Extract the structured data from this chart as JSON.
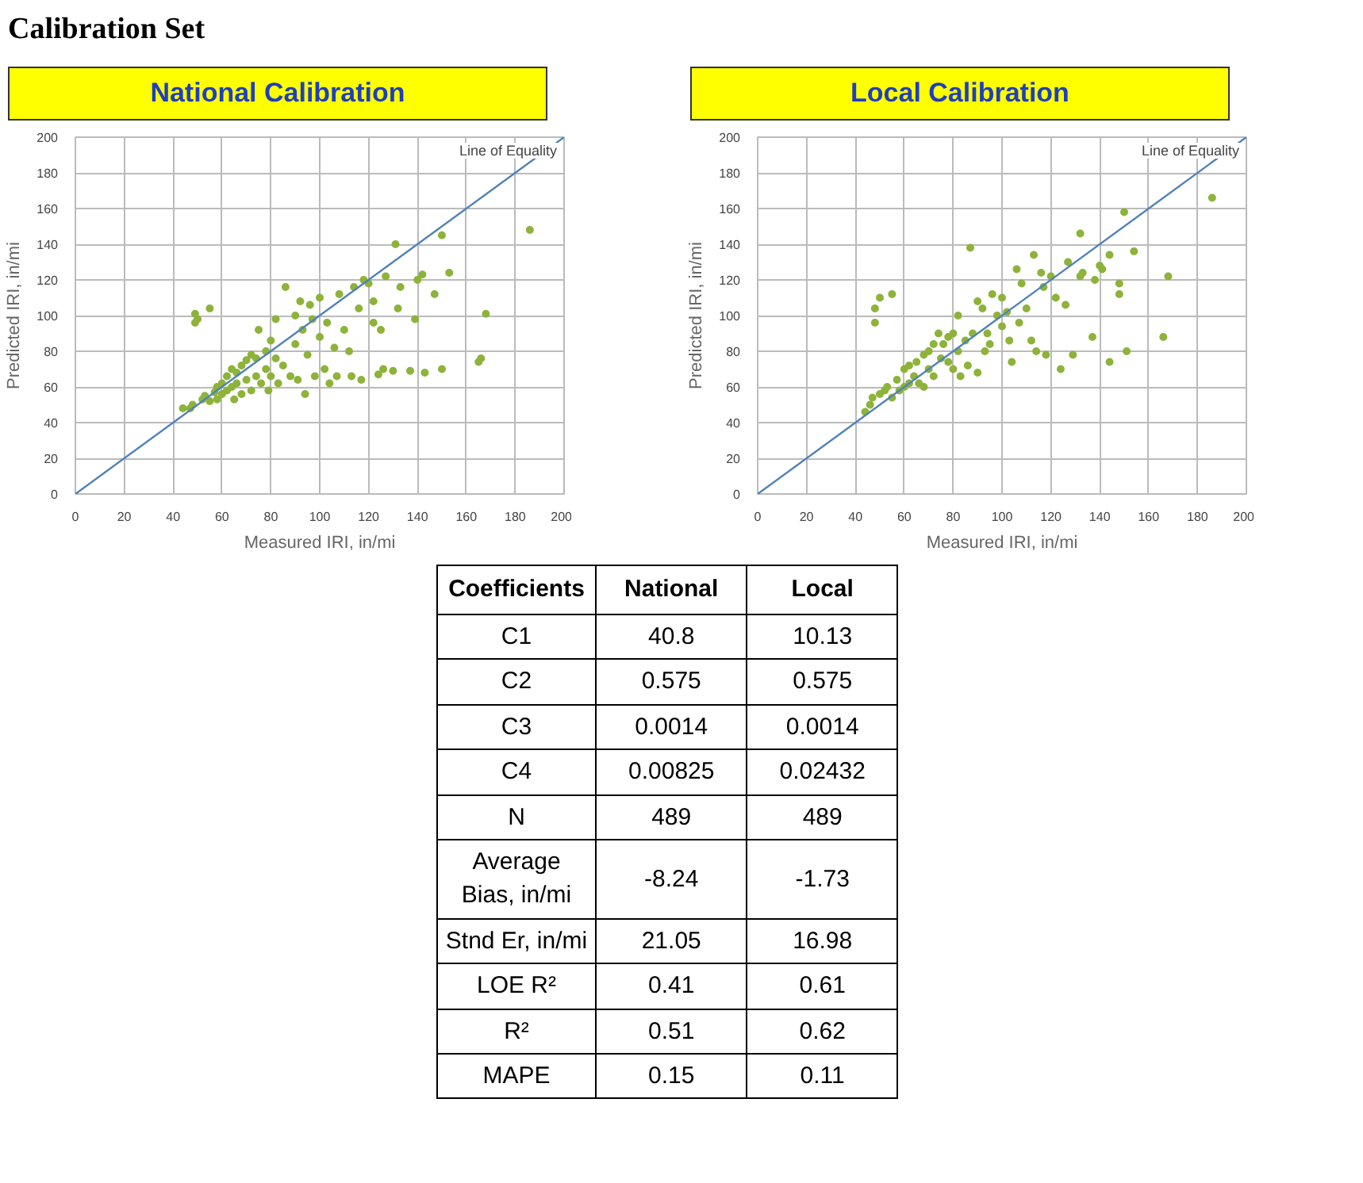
{
  "chart_data": [
    {
      "type": "scatter",
      "title": "National Calibration",
      "annotations": [
        "Calibration Set"
      ],
      "xlabel": "Measured IRI, in/mi",
      "ylabel": "Predicted IRI, in/mi",
      "xlim": [
        0,
        200
      ],
      "ylim": [
        0,
        200
      ],
      "xticks": [
        0,
        20,
        40,
        60,
        80,
        100,
        120,
        140,
        160,
        180,
        200
      ],
      "yticks": [
        0,
        20,
        40,
        60,
        80,
        100,
        120,
        140,
        160,
        180,
        200
      ],
      "grid": true,
      "legend": "top right",
      "series": [
        {
          "marker": "circle",
          "color": "#8db33a",
          "x": [
            44,
            47,
            48,
            49,
            49,
            50,
            52,
            53,
            55,
            55,
            57,
            58,
            58,
            60,
            60,
            62,
            62,
            64,
            64,
            65,
            66,
            66,
            68,
            68,
            70,
            70,
            72,
            72,
            74,
            74,
            75,
            76,
            78,
            78,
            79,
            80,
            80,
            82,
            82,
            83,
            85,
            86,
            88,
            90,
            90,
            91,
            92,
            93,
            94,
            95,
            96,
            97,
            98,
            100,
            100,
            102,
            103,
            104,
            106,
            107,
            108,
            110,
            112,
            113,
            114,
            116,
            117,
            118,
            120,
            122,
            122,
            124,
            125,
            126,
            127,
            130,
            131,
            132,
            133,
            137,
            139,
            140,
            142,
            143,
            147,
            150,
            150,
            153,
            165,
            166,
            168,
            186
          ],
          "values": [
            48,
            48,
            50,
            101,
            96,
            98,
            53,
            55,
            104,
            52,
            57,
            60,
            53,
            62,
            56,
            66,
            58,
            60,
            70,
            53,
            68,
            62,
            72,
            56,
            75,
            64,
            78,
            58,
            76,
            66,
            92,
            62,
            80,
            70,
            58,
            86,
            66,
            98,
            76,
            62,
            72,
            116,
            66,
            100,
            84,
            64,
            108,
            92,
            56,
            78,
            106,
            98,
            66,
            110,
            88,
            70,
            96,
            62,
            82,
            66,
            112,
            92,
            80,
            66,
            116,
            104,
            64,
            120,
            118,
            96,
            108,
            67,
            92,
            70,
            122,
            69,
            140,
            104,
            116,
            69,
            98,
            120,
            123,
            68,
            112,
            70,
            145,
            124,
            74,
            76,
            101,
            148
          ]
        },
        {
          "type": "line",
          "marker": "none",
          "name": "Line of Equality",
          "color": "#4f81bd",
          "x": [
            0,
            200
          ],
          "values": [
            0,
            200
          ]
        }
      ]
    },
    {
      "type": "scatter",
      "title": "Local Calibration",
      "xlabel": "Measured IRI, in/mi",
      "ylabel": "Predicted IRI, in/mi",
      "xlim": [
        0,
        200
      ],
      "ylim": [
        0,
        200
      ],
      "xticks": [
        0,
        20,
        40,
        60,
        80,
        100,
        120,
        140,
        160,
        180,
        200
      ],
      "yticks": [
        0,
        20,
        40,
        60,
        80,
        100,
        120,
        140,
        160,
        180,
        200
      ],
      "grid": true,
      "legend": "top right",
      "series": [
        {
          "marker": "circle",
          "color": "#8db33a",
          "x": [
            44,
            46,
            47,
            48,
            48,
            50,
            50,
            52,
            53,
            55,
            55,
            57,
            58,
            60,
            60,
            62,
            62,
            64,
            65,
            66,
            68,
            68,
            70,
            70,
            72,
            72,
            74,
            75,
            76,
            78,
            78,
            80,
            80,
            82,
            82,
            83,
            85,
            86,
            87,
            88,
            90,
            90,
            92,
            93,
            94,
            95,
            96,
            98,
            100,
            100,
            102,
            103,
            104,
            106,
            107,
            108,
            110,
            112,
            113,
            114,
            116,
            117,
            118,
            120,
            122,
            124,
            126,
            127,
            129,
            132,
            132,
            133,
            137,
            138,
            140,
            141,
            144,
            144,
            148,
            148,
            150,
            151,
            154,
            166,
            168,
            186
          ],
          "values": [
            46,
            50,
            54,
            96,
            104,
            110,
            56,
            58,
            60,
            112,
            54,
            64,
            58,
            70,
            60,
            72,
            62,
            66,
            74,
            62,
            78,
            60,
            80,
            70,
            84,
            66,
            90,
            76,
            84,
            88,
            74,
            90,
            70,
            100,
            80,
            66,
            86,
            72,
            138,
            90,
            108,
            68,
            104,
            80,
            90,
            84,
            112,
            100,
            110,
            94,
            102,
            86,
            74,
            126,
            96,
            118,
            104,
            86,
            134,
            80,
            124,
            116,
            78,
            122,
            110,
            70,
            106,
            130,
            78,
            146,
            122,
            124,
            88,
            120,
            128,
            126,
            134,
            74,
            118,
            112,
            158,
            80,
            136,
            88,
            122,
            166
          ]
        },
        {
          "type": "line",
          "marker": "none",
          "name": "Line of Equality",
          "color": "#4f81bd",
          "x": [
            0,
            200
          ],
          "values": [
            0,
            200
          ]
        }
      ]
    },
    {
      "type": "other",
      "categories": [
        "Coefficients",
        "National",
        "Local"
      ],
      "y_categories": [
        "C1",
        "C2",
        "C3",
        "C4",
        "N",
        "Average Bias, in/mi",
        "Stnd Er, in/mi",
        "LOE R²",
        "R²",
        "MAPE"
      ],
      "cell_labels": [
        [
          "40.8",
          "10.13"
        ],
        [
          "0.575",
          "0.575"
        ],
        [
          "0.0014",
          "0.0014"
        ],
        [
          "0.00825",
          "0.02432"
        ],
        [
          "489",
          "489"
        ],
        [
          "-8.24",
          "-1.73"
        ],
        [
          "21.05",
          "16.98"
        ],
        [
          "0.41",
          "0.61"
        ],
        [
          "0.51",
          "0.62"
        ],
        [
          "0.15",
          "0.11"
        ]
      ]
    }
  ]
}
